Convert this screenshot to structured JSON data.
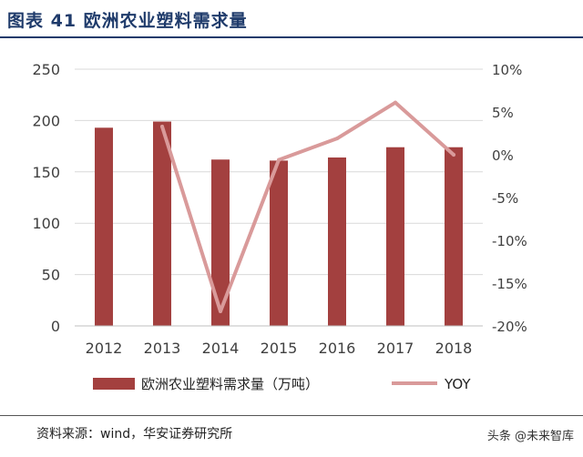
{
  "figure": {
    "title": "图表 41  欧洲农业塑料需求量",
    "source": "资料来源：wind，华安证券研究所",
    "watermark": "头条 @未来智库"
  },
  "colors": {
    "bar": "#a3403f",
    "line": "#d99a9a",
    "title": "#1f3b6b",
    "axis_text": "#404040",
    "grid": "#d9d9d9"
  },
  "chart_data": {
    "type": "bar",
    "categories": [
      "2012",
      "2013",
      "2014",
      "2015",
      "2016",
      "2017",
      "2018"
    ],
    "series": [
      {
        "name": "欧洲农业塑料需求量（万吨）",
        "type": "bar",
        "axis": "left",
        "values": [
          193,
          199,
          162,
          161,
          164,
          174,
          174
        ]
      },
      {
        "name": "YOY",
        "type": "line",
        "axis": "right",
        "values": [
          null,
          3.3,
          -18.3,
          -0.6,
          1.9,
          6.1,
          0.0
        ]
      }
    ],
    "y_left": {
      "min": 0,
      "max": 250,
      "ticks": [
        0,
        50,
        100,
        150,
        200,
        250
      ]
    },
    "y_right": {
      "min": -20,
      "max": 10,
      "ticks": [
        -20,
        -15,
        -10,
        -5,
        0,
        5,
        10
      ],
      "tick_labels": [
        "-20%",
        "-15%",
        "-10%",
        "-5%",
        "0%",
        "5%",
        "10%"
      ]
    },
    "grid": true,
    "legend_position": "bottom"
  }
}
